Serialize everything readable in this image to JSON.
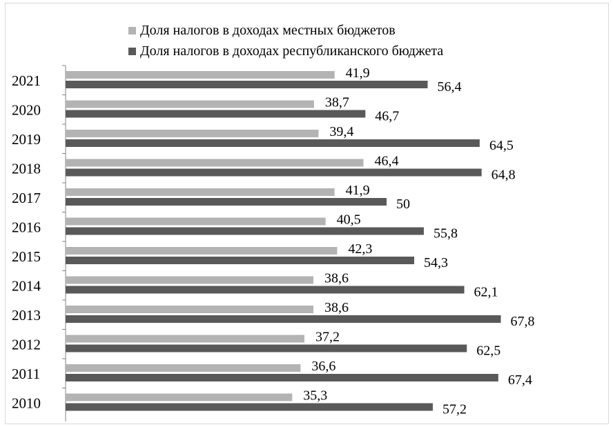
{
  "chart_data": {
    "type": "bar",
    "orientation": "horizontal",
    "categories": [
      "2021",
      "2020",
      "2019",
      "2018",
      "2017",
      "2016",
      "2015",
      "2014",
      "2013",
      "2012",
      "2011",
      "2010"
    ],
    "series": [
      {
        "name": "Доля налогов в доходах местных бюджетов",
        "color": "#b3b3b3",
        "values": [
          41.9,
          38.7,
          39.4,
          46.4,
          41.9,
          40.5,
          42.3,
          38.6,
          38.6,
          37.2,
          36.6,
          35.3
        ],
        "labels": [
          "41,9",
          "38,7",
          "39,4",
          "46,4",
          "41,9",
          "40,5",
          "42,3",
          "38,6",
          "38,6",
          "37,2",
          "36,6",
          "35,3"
        ]
      },
      {
        "name": "Доля налогов в доходах республиканского бюджета",
        "color": "#595959",
        "values": [
          56.4,
          46.7,
          64.5,
          64.8,
          50,
          55.8,
          54.3,
          62.1,
          67.8,
          62.5,
          67.4,
          57.2
        ],
        "labels": [
          "56,4",
          "46,7",
          "64,5",
          "64,8",
          "50",
          "55,8",
          "54,3",
          "62,1",
          "67,8",
          "62,5",
          "67,4",
          "57,2"
        ]
      }
    ],
    "title": "",
    "xlabel": "",
    "ylabel": "",
    "xlim": [
      0,
      80
    ],
    "grid": false,
    "legend_position": "top"
  }
}
